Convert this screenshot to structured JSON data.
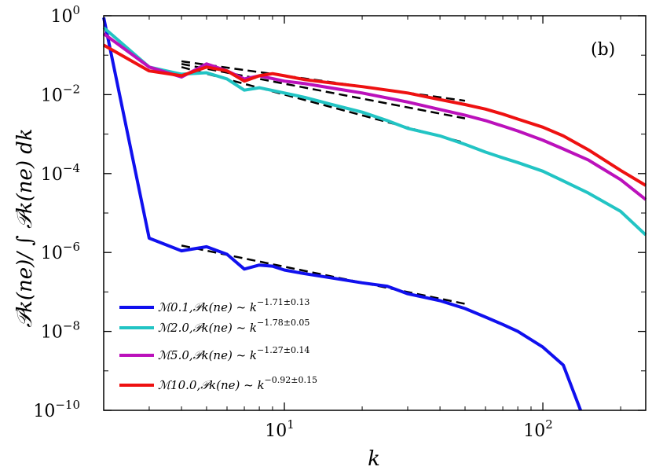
{
  "chart_data": {
    "type": "line",
    "panel_label": "(b)",
    "xlabel": "k",
    "ylabel": "𝒫k(ne)/ ∫ 𝒫k(ne) dk",
    "xscale": "log",
    "yscale": "log",
    "xlim": [
      2,
      250
    ],
    "ylim": [
      1e-10,
      1
    ],
    "grid": false,
    "legend_position": "bottom-left",
    "x_ticks": [
      {
        "value": 10,
        "base": "10",
        "exp": "1"
      },
      {
        "value": 100,
        "base": "10",
        "exp": "2"
      }
    ],
    "y_ticks": [
      {
        "value": 1,
        "base": "10",
        "exp": "0"
      },
      {
        "value": 0.01,
        "base": "10",
        "exp": "−2"
      },
      {
        "value": 0.0001,
        "base": "10",
        "exp": "−4"
      },
      {
        "value": 1e-06,
        "base": "10",
        "exp": "−6"
      },
      {
        "value": 1e-08,
        "base": "10",
        "exp": "−8"
      },
      {
        "value": 1e-10,
        "base": "10",
        "exp": "−10"
      }
    ],
    "series": [
      {
        "name": "ℳ0.1,𝒫k(ne) ~ k",
        "legend_exponent": "−1.71±0.13",
        "color": "#1010ee",
        "points": [
          [
            2,
            0.9
          ],
          [
            3,
            2.3e-06
          ],
          [
            4,
            1.1e-06
          ],
          [
            5,
            1.4e-06
          ],
          [
            6,
            9e-07
          ],
          [
            7,
            3.8e-07
          ],
          [
            8,
            4.8e-07
          ],
          [
            9,
            4.5e-07
          ],
          [
            10,
            3.6e-07
          ],
          [
            12,
            2.9e-07
          ],
          [
            15,
            2.3e-07
          ],
          [
            20,
            1.7e-07
          ],
          [
            25,
            1.4e-07
          ],
          [
            30,
            9e-08
          ],
          [
            40,
            6e-08
          ],
          [
            50,
            3.8e-08
          ],
          [
            60,
            2.3e-08
          ],
          [
            70,
            1.5e-08
          ],
          [
            80,
            1e-08
          ],
          [
            100,
            4e-09
          ],
          [
            120,
            1.4e-09
          ],
          [
            140,
            1e-10
          ]
        ]
      },
      {
        "name": "ℳ2.0,𝒫k(ne) ~ k",
        "legend_exponent": "−1.78±0.05",
        "color": "#22c4c4",
        "points": [
          [
            2,
            0.5
          ],
          [
            3,
            0.05
          ],
          [
            4,
            0.033
          ],
          [
            5,
            0.036
          ],
          [
            6,
            0.025
          ],
          [
            7,
            0.013
          ],
          [
            8,
            0.015
          ],
          [
            10,
            0.011
          ],
          [
            12,
            0.0085
          ],
          [
            15,
            0.0058
          ],
          [
            20,
            0.0036
          ],
          [
            25,
            0.0022
          ],
          [
            30,
            0.0014
          ],
          [
            40,
            0.0009
          ],
          [
            50,
            0.00055
          ],
          [
            60,
            0.00035
          ],
          [
            70,
            0.00025
          ],
          [
            80,
            0.00019
          ],
          [
            100,
            0.000115
          ],
          [
            120,
            6.5e-05
          ],
          [
            150,
            3.2e-05
          ],
          [
            200,
            1.1e-05
          ],
          [
            250,
            2.8e-06
          ]
        ]
      },
      {
        "name": "ℳ5.0,𝒫k(ne) ~ k",
        "legend_exponent": "−1.27±0.14",
        "color": "#bb11bb",
        "points": [
          [
            2,
            0.35
          ],
          [
            3,
            0.05
          ],
          [
            4,
            0.028
          ],
          [
            5,
            0.06
          ],
          [
            6,
            0.04
          ],
          [
            7,
            0.025
          ],
          [
            8,
            0.03
          ],
          [
            10,
            0.022
          ],
          [
            12,
            0.019
          ],
          [
            15,
            0.015
          ],
          [
            20,
            0.011
          ],
          [
            30,
            0.0065
          ],
          [
            40,
            0.0042
          ],
          [
            50,
            0.003
          ],
          [
            60,
            0.0022
          ],
          [
            70,
            0.0016
          ],
          [
            80,
            0.0012
          ],
          [
            100,
            0.0007
          ],
          [
            120,
            0.00042
          ],
          [
            150,
            0.00022
          ],
          [
            200,
            7e-05
          ],
          [
            250,
            2.2e-05
          ]
        ]
      },
      {
        "name": "ℳ10.0,𝒫k(ne) ~ k",
        "legend_exponent": "−0.92±0.15",
        "color": "#ee1111",
        "points": [
          [
            2,
            0.18
          ],
          [
            3,
            0.04
          ],
          [
            4,
            0.03
          ],
          [
            5,
            0.05
          ],
          [
            6,
            0.04
          ],
          [
            7,
            0.022
          ],
          [
            8,
            0.03
          ],
          [
            9,
            0.034
          ],
          [
            10,
            0.03
          ],
          [
            12,
            0.024
          ],
          [
            15,
            0.02
          ],
          [
            20,
            0.016
          ],
          [
            30,
            0.011
          ],
          [
            40,
            0.0075
          ],
          [
            50,
            0.0056
          ],
          [
            60,
            0.0043
          ],
          [
            70,
            0.0032
          ],
          [
            80,
            0.0024
          ],
          [
            100,
            0.0015
          ],
          [
            120,
            0.0009
          ],
          [
            150,
            0.0004
          ],
          [
            200,
            0.00012
          ],
          [
            250,
            5e-05
          ]
        ]
      }
    ],
    "fits": [
      {
        "k_range": [
          4,
          50
        ],
        "y_range": [
          1.5e-06,
          5e-08
        ]
      },
      {
        "k_range": [
          4,
          50
        ],
        "y_range": [
          0.05,
          0.0006
        ]
      },
      {
        "k_range": [
          4,
          50
        ],
        "y_range": [
          0.06,
          0.0025
        ]
      },
      {
        "k_range": [
          4,
          50
        ],
        "y_range": [
          0.07,
          0.007
        ]
      }
    ]
  }
}
